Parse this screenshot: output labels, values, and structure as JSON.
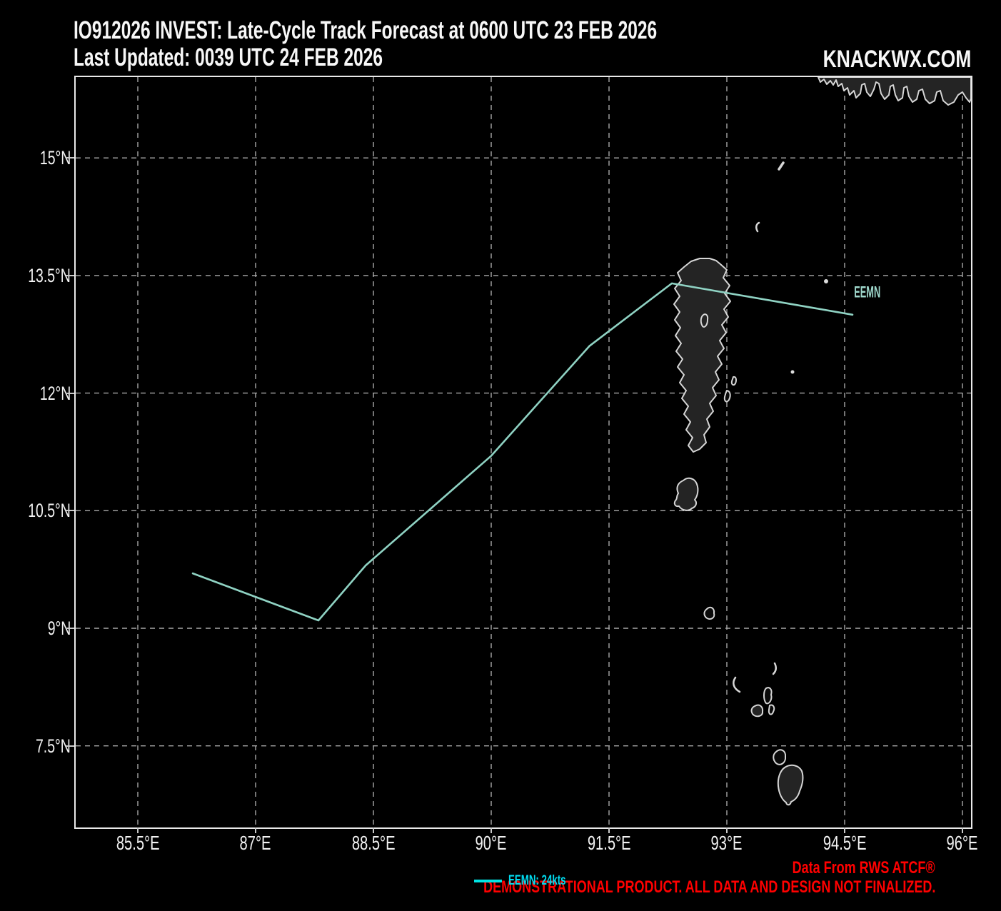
{
  "header": {
    "title": "IO912026 INVEST: Late-Cycle Track Forecast at 0600 UTC 23 FEB 2026",
    "subtitle": "Last Updated: 0039 UTC 24 FEB 2026",
    "brand": "KNACKWX.COM"
  },
  "axes": {
    "lon_ticks": [
      {
        "label": "85.5°E",
        "value": 85.5
      },
      {
        "label": "87°E",
        "value": 87
      },
      {
        "label": "88.5°E",
        "value": 88.5
      },
      {
        "label": "90°E",
        "value": 90
      },
      {
        "label": "91.5°E",
        "value": 91.5
      },
      {
        "label": "93°E",
        "value": 93
      },
      {
        "label": "94.5°E",
        "value": 94.5
      },
      {
        "label": "96°E",
        "value": 96
      }
    ],
    "lat_ticks": [
      {
        "label": "15°N",
        "value": 15
      },
      {
        "label": "13.5°N",
        "value": 13.5
      },
      {
        "label": "12°N",
        "value": 12
      },
      {
        "label": "10.5°N",
        "value": 10.5
      },
      {
        "label": "9°N",
        "value": 9
      },
      {
        "label": "7.5°N",
        "value": 7.5
      }
    ]
  },
  "track": {
    "name": "EEMN",
    "label": "EEMN",
    "intensity": "24kts",
    "points": [
      {
        "lon": 86.2,
        "lat": 9.7
      },
      {
        "lon": 87.8,
        "lat": 9.1
      },
      {
        "lon": 88.4,
        "lat": 9.8
      },
      {
        "lon": 90.0,
        "lat": 11.2
      },
      {
        "lon": 91.25,
        "lat": 12.6
      },
      {
        "lon": 92.3,
        "lat": 13.4
      },
      {
        "lon": 94.6,
        "lat": 13.0
      }
    ],
    "label_anchor": {
      "lon": 94.62,
      "lat": 13.22
    }
  },
  "legend": {
    "label": "EEMN: 24kts"
  },
  "disclaimer": {
    "line1": "Data From RWS ATCF®",
    "line2": "DEMONSTRATIONAL PRODUCT. ALL DATA AND DESIGN NOT FINALIZED."
  },
  "colors": {
    "background": "#000000",
    "track_line": "#8FD2C3",
    "track_label": "#9FD8CC",
    "legend_line": "#00E3E3",
    "legend_text": "#00DCF0",
    "grid": "#A9A9A9",
    "border": "#E9E9E9",
    "warning": "#FF0000",
    "text": "#F7F7F7"
  },
  "chart_data": {
    "type": "line",
    "title": "IO912026 INVEST: Late-Cycle Track Forecast at 0600 UTC 23 FEB 2026",
    "xlabel": "",
    "ylabel": "",
    "xlim": [
      84.7,
      96.1
    ],
    "ylim": [
      6.5,
      16.0
    ],
    "x_ticks": [
      85.5,
      87,
      88.5,
      90,
      91.5,
      93,
      94.5,
      96
    ],
    "y_ticks": [
      7.5,
      9,
      10.5,
      12,
      13.5,
      15
    ],
    "grid": true,
    "legend_position": "bottom-center",
    "series": [
      {
        "name": "EEMN: 24kts",
        "x": [
          86.2,
          87.8,
          88.4,
          90.0,
          91.25,
          92.3,
          94.6
        ],
        "y": [
          9.7,
          9.1,
          9.8,
          11.2,
          12.6,
          13.4,
          13.0
        ]
      }
    ]
  }
}
